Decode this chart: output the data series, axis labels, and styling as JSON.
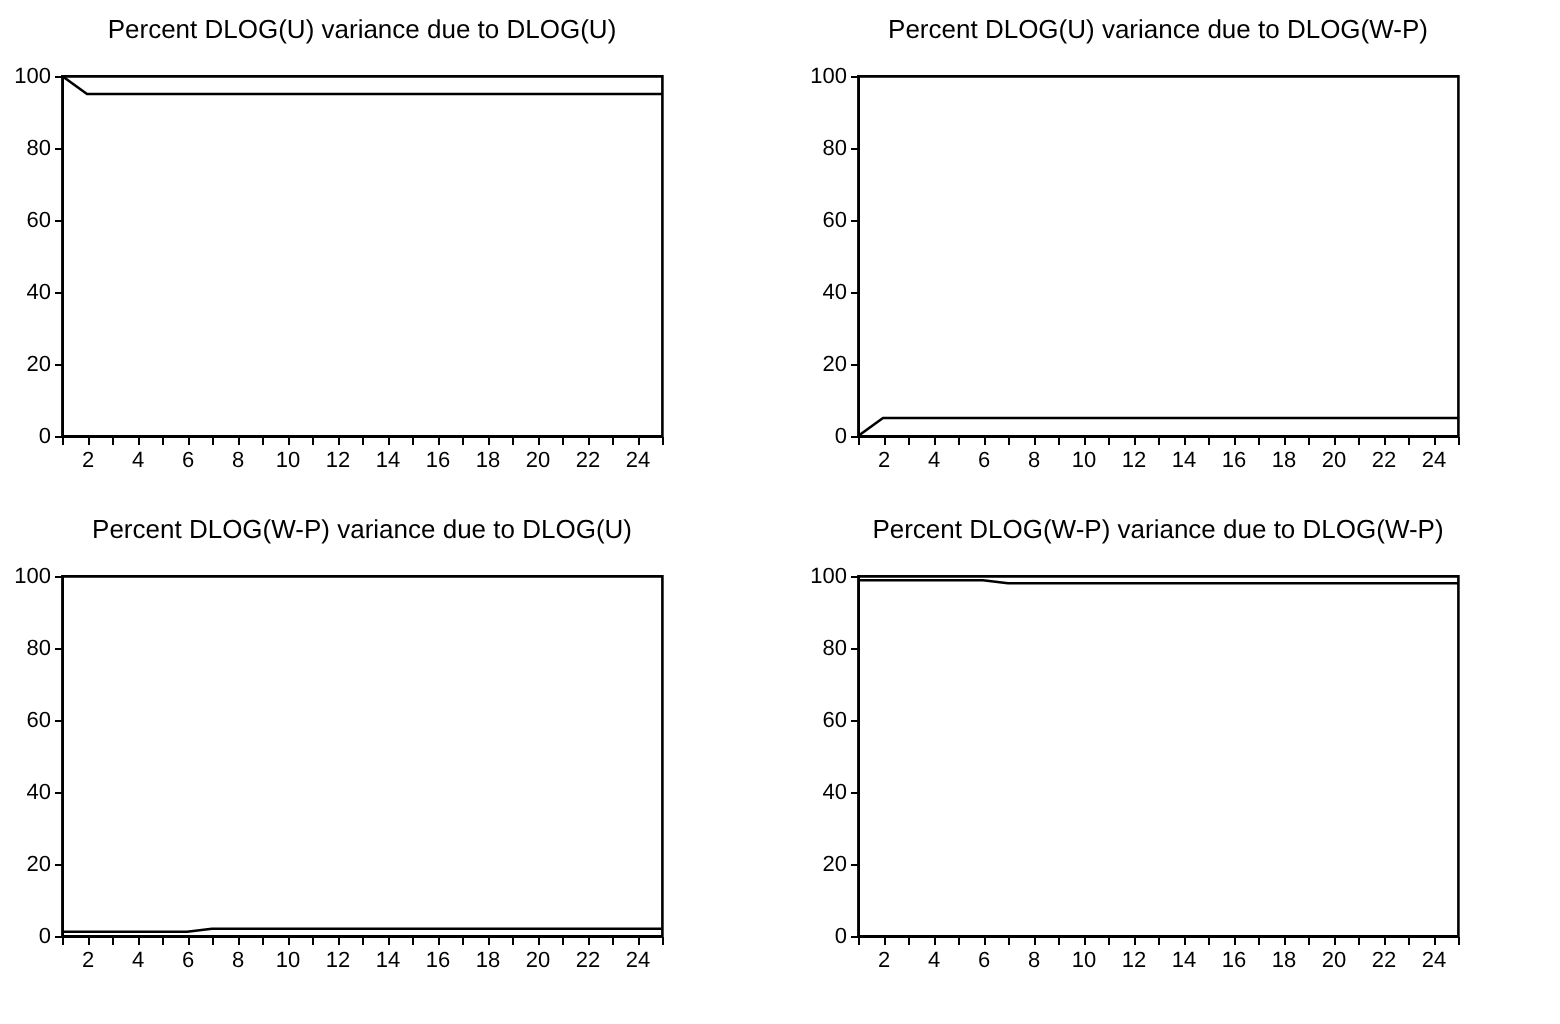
{
  "chart_data": [
    {
      "type": "line",
      "title": "Percent DLOG(U) variance due to DLOG(U)",
      "x": [
        1,
        2,
        3,
        4,
        5,
        6,
        7,
        8,
        9,
        10,
        11,
        12,
        13,
        14,
        15,
        16,
        17,
        18,
        19,
        20,
        21,
        22,
        23,
        24,
        25
      ],
      "series": [
        {
          "color": "#000000",
          "values": [
            100,
            95,
            95,
            95,
            95,
            95,
            95,
            95,
            95,
            95,
            95,
            95,
            95,
            95,
            95,
            95,
            95,
            95,
            95,
            95,
            95,
            95,
            95,
            95,
            95
          ]
        }
      ],
      "xlim": [
        1,
        25
      ],
      "ylim": [
        0,
        100
      ],
      "yticks": [
        0,
        20,
        40,
        60,
        80,
        100
      ],
      "xticks": [
        {
          "value": 1,
          "label": null
        },
        2,
        {
          "value": 3,
          "label": null
        },
        4,
        {
          "value": 5,
          "label": null
        },
        6,
        {
          "value": 7,
          "label": null
        },
        8,
        {
          "value": 9,
          "label": null
        },
        10,
        {
          "value": 11,
          "label": null
        },
        12,
        {
          "value": 13,
          "label": null
        },
        14,
        {
          "value": 15,
          "label": null
        },
        16,
        {
          "value": 17,
          "label": null
        },
        18,
        {
          "value": 19,
          "label": null
        },
        20,
        {
          "value": 21,
          "label": null
        },
        22,
        {
          "value": 23,
          "label": null
        },
        24,
        {
          "value": 25,
          "label": null
        }
      ],
      "grid": false,
      "marker": "none",
      "line_style": "solid"
    },
    {
      "type": "line",
      "title": "Percent DLOG(U) variance due to DLOG(W-P)",
      "x": [
        1,
        2,
        3,
        4,
        5,
        6,
        7,
        8,
        9,
        10,
        11,
        12,
        13,
        14,
        15,
        16,
        17,
        18,
        19,
        20,
        21,
        22,
        23,
        24,
        25
      ],
      "series": [
        {
          "color": "#000000",
          "values": [
            0,
            5,
            5,
            5,
            5,
            5,
            5,
            5,
            5,
            5,
            5,
            5,
            5,
            5,
            5,
            5,
            5,
            5,
            5,
            5,
            5,
            5,
            5,
            5,
            5
          ]
        }
      ],
      "xlim": [
        1,
        25
      ],
      "ylim": [
        0,
        100
      ],
      "yticks": [
        0,
        20,
        40,
        60,
        80,
        100
      ],
      "xticks": [
        {
          "value": 1,
          "label": null
        },
        2,
        {
          "value": 3,
          "label": null
        },
        4,
        {
          "value": 5,
          "label": null
        },
        6,
        {
          "value": 7,
          "label": null
        },
        8,
        {
          "value": 9,
          "label": null
        },
        10,
        {
          "value": 11,
          "label": null
        },
        12,
        {
          "value": 13,
          "label": null
        },
        14,
        {
          "value": 15,
          "label": null
        },
        16,
        {
          "value": 17,
          "label": null
        },
        18,
        {
          "value": 19,
          "label": null
        },
        20,
        {
          "value": 21,
          "label": null
        },
        22,
        {
          "value": 23,
          "label": null
        },
        24,
        {
          "value": 25,
          "label": null
        }
      ],
      "grid": false,
      "marker": "none",
      "line_style": "solid"
    },
    {
      "type": "line",
      "title": "Percent DLOG(W-P) variance due to DLOG(U)",
      "x": [
        1,
        2,
        3,
        4,
        5,
        6,
        7,
        8,
        9,
        10,
        11,
        12,
        13,
        14,
        15,
        16,
        17,
        18,
        19,
        20,
        21,
        22,
        23,
        24,
        25
      ],
      "series": [
        {
          "color": "#000000",
          "values": [
            1.2,
            1.2,
            1.2,
            1.2,
            1.2,
            1.2,
            2,
            2,
            2,
            2,
            2,
            2,
            2,
            2,
            2,
            2,
            2,
            2,
            2,
            2,
            2,
            2,
            2,
            2,
            2
          ]
        }
      ],
      "xlim": [
        1,
        25
      ],
      "ylim": [
        0,
        100
      ],
      "yticks": [
        0,
        20,
        40,
        60,
        80,
        100
      ],
      "xticks": [
        {
          "value": 1,
          "label": null
        },
        2,
        {
          "value": 3,
          "label": null
        },
        4,
        {
          "value": 5,
          "label": null
        },
        6,
        {
          "value": 7,
          "label": null
        },
        8,
        {
          "value": 9,
          "label": null
        },
        10,
        {
          "value": 11,
          "label": null
        },
        12,
        {
          "value": 13,
          "label": null
        },
        14,
        {
          "value": 15,
          "label": null
        },
        16,
        {
          "value": 17,
          "label": null
        },
        18,
        {
          "value": 19,
          "label": null
        },
        20,
        {
          "value": 21,
          "label": null
        },
        22,
        {
          "value": 23,
          "label": null
        },
        24,
        {
          "value": 25,
          "label": null
        }
      ],
      "grid": false,
      "marker": "none",
      "line_style": "solid"
    },
    {
      "type": "line",
      "title": "Percent DLOG(W-P) variance due to DLOG(W-P)",
      "x": [
        1,
        2,
        3,
        4,
        5,
        6,
        7,
        8,
        9,
        10,
        11,
        12,
        13,
        14,
        15,
        16,
        17,
        18,
        19,
        20,
        21,
        22,
        23,
        24,
        25
      ],
      "series": [
        {
          "color": "#000000",
          "values": [
            98.8,
            98.8,
            98.8,
            98.8,
            98.8,
            98.8,
            98,
            98,
            98,
            98,
            98,
            98,
            98,
            98,
            98,
            98,
            98,
            98,
            98,
            98,
            98,
            98,
            98,
            98,
            98
          ]
        }
      ],
      "xlim": [
        1,
        25
      ],
      "ylim": [
        0,
        100
      ],
      "yticks": [
        0,
        20,
        40,
        60,
        80,
        100
      ],
      "xticks": [
        {
          "value": 1,
          "label": null
        },
        2,
        {
          "value": 3,
          "label": null
        },
        4,
        {
          "value": 5,
          "label": null
        },
        6,
        {
          "value": 7,
          "label": null
        },
        8,
        {
          "value": 9,
          "label": null
        },
        10,
        {
          "value": 11,
          "label": null
        },
        12,
        {
          "value": 13,
          "label": null
        },
        14,
        {
          "value": 15,
          "label": null
        },
        16,
        {
          "value": 17,
          "label": null
        },
        18,
        {
          "value": 19,
          "label": null
        },
        20,
        {
          "value": 21,
          "label": null
        },
        22,
        {
          "value": 23,
          "label": null
        },
        24,
        {
          "value": 25,
          "label": null
        }
      ],
      "grid": false,
      "marker": "none",
      "line_style": "solid"
    }
  ]
}
